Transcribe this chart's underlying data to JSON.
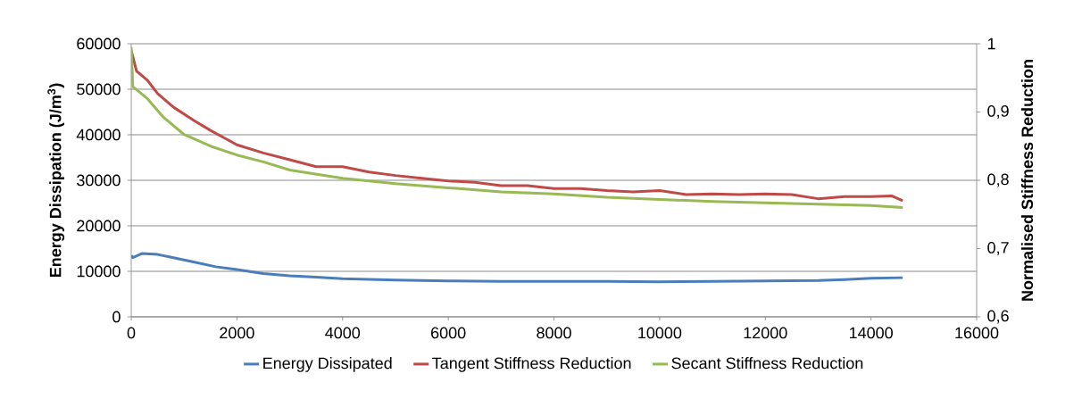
{
  "chart_data": {
    "type": "line",
    "xlabel": null,
    "ylabel": "Energy Dissipation (J/m$^{3}$)",
    "y2label": "Normalised Stiffness Reduction",
    "series": [
      {
        "name": "Energy Dissipated",
        "color": "#4a7ebb",
        "x": [
          0,
          30,
          200,
          500,
          800,
          1200,
          1600,
          2000,
          2500,
          3000,
          3500,
          4000,
          5000,
          6000,
          7000,
          8000,
          9000,
          10000,
          11000,
          12000,
          13000,
          13500,
          14000,
          14600
        ],
        "values": [
          13500,
          13000,
          13900,
          13700,
          13000,
          12000,
          11000,
          10400,
          9500,
          9000,
          8700,
          8400,
          8100,
          7900,
          7800,
          7800,
          7800,
          7700,
          7800,
          7900,
          8000,
          8200,
          8500,
          8600
        ]
      },
      {
        "name": "Tangent Stiffness Reduction",
        "color": "#be4b48",
        "axis": "y2",
        "x": [
          0,
          100,
          300,
          500,
          800,
          1200,
          1500,
          2000,
          2500,
          3000,
          3500,
          4000,
          4500,
          5000,
          5500,
          6000,
          6500,
          7000,
          7500,
          8000,
          8500,
          9000,
          9500,
          10000,
          10500,
          11000,
          11500,
          12000,
          12500,
          13000,
          13500,
          14000,
          14400,
          14600
        ],
        "values": [
          0.99,
          0.96,
          0.947,
          0.927,
          0.907,
          0.887,
          0.873,
          0.852,
          0.84,
          0.83,
          0.82,
          0.82,
          0.812,
          0.807,
          0.803,
          0.799,
          0.797,
          0.792,
          0.792,
          0.788,
          0.788,
          0.785,
          0.783,
          0.785,
          0.779,
          0.78,
          0.779,
          0.78,
          0.779,
          0.773,
          0.776,
          0.776,
          0.777,
          0.77
        ]
      },
      {
        "name": "Secant Stiffness Reduction",
        "color": "#98b954",
        "axis": "y2",
        "x": [
          0,
          30,
          300,
          600,
          1000,
          1500,
          2000,
          2500,
          3000,
          3500,
          4000,
          4500,
          5000,
          6000,
          7000,
          8000,
          9000,
          10000,
          11000,
          12000,
          13000,
          14000,
          14600
        ],
        "values": [
          0.995,
          0.937,
          0.92,
          0.893,
          0.867,
          0.85,
          0.837,
          0.827,
          0.815,
          0.809,
          0.803,
          0.799,
          0.795,
          0.789,
          0.783,
          0.78,
          0.775,
          0.772,
          0.769,
          0.767,
          0.765,
          0.763,
          0.76
        ]
      }
    ],
    "xlim": [
      0,
      16000
    ],
    "xticks": [
      0,
      2000,
      4000,
      6000,
      8000,
      10000,
      12000,
      14000,
      16000
    ],
    "ylim": [
      0,
      60000
    ],
    "yticks": [
      0,
      10000,
      20000,
      30000,
      40000,
      50000,
      60000
    ],
    "y2lim": [
      0.6,
      1.0
    ],
    "y2ticks": [
      {
        "value": 0.6,
        "label": "0,6"
      },
      {
        "value": 0.7,
        "label": "0,7"
      },
      {
        "value": 0.8,
        "label": "0,8"
      },
      {
        "value": 0.9,
        "label": "0,9"
      },
      {
        "value": 1.0,
        "label": "1"
      }
    ],
    "grid": "y",
    "legend": "bottom",
    "marker": "none",
    "line_style": "solid"
  }
}
